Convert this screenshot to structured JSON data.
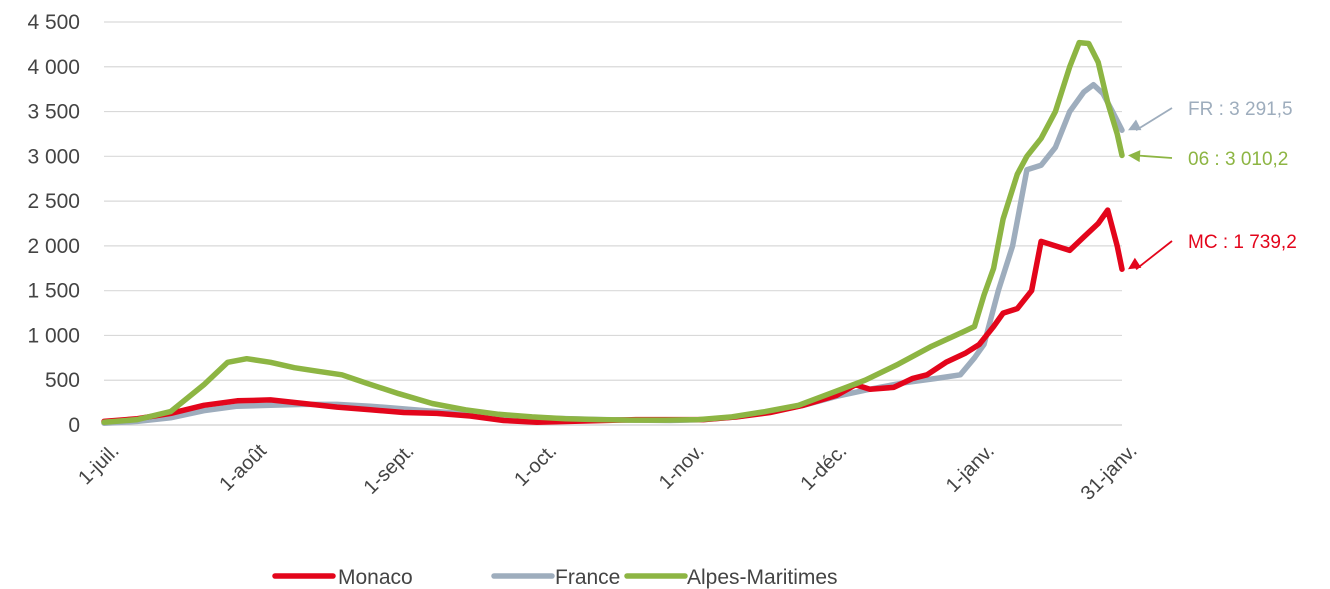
{
  "chart_data": {
    "type": "line",
    "title": "",
    "xlabel": "",
    "ylabel": "",
    "ylim": [
      0,
      4500
    ],
    "yticks": [
      0,
      500,
      1000,
      1500,
      2000,
      2500,
      3000,
      3500,
      4000,
      4500
    ],
    "ytick_labels": [
      "0",
      "500",
      "1 000",
      "1 500",
      "2 000",
      "2 500",
      "3 000",
      "3 500",
      "4 000",
      "4 500"
    ],
    "x_start": "2020-07-01",
    "x_end": "2021-01-31",
    "xticks": [
      {
        "date": "2020-07-01",
        "label": "1-juil."
      },
      {
        "date": "2020-08-01",
        "label": "1-août"
      },
      {
        "date": "2020-09-01",
        "label": "1-sept."
      },
      {
        "date": "2020-10-01",
        "label": "1-oct."
      },
      {
        "date": "2020-11-01",
        "label": "1-nov."
      },
      {
        "date": "2020-12-01",
        "label": "1-déc."
      },
      {
        "date": "2021-01-01",
        "label": "1-janv."
      },
      {
        "date": "2021-01-31",
        "label": "31-janv."
      }
    ],
    "grid": "horizontal",
    "legend_position": "bottom",
    "series": [
      {
        "name": "Monaco",
        "color": "#e3051b",
        "points": [
          [
            "2020-07-01",
            40
          ],
          [
            "2020-07-08",
            70
          ],
          [
            "2020-07-15",
            130
          ],
          [
            "2020-07-22",
            220
          ],
          [
            "2020-07-29",
            270
          ],
          [
            "2020-08-05",
            280
          ],
          [
            "2020-08-12",
            240
          ],
          [
            "2020-08-19",
            200
          ],
          [
            "2020-08-26",
            170
          ],
          [
            "2020-09-02",
            140
          ],
          [
            "2020-09-09",
            130
          ],
          [
            "2020-09-16",
            100
          ],
          [
            "2020-09-23",
            50
          ],
          [
            "2020-09-30",
            30
          ],
          [
            "2020-10-07",
            40
          ],
          [
            "2020-10-14",
            50
          ],
          [
            "2020-10-21",
            60
          ],
          [
            "2020-10-28",
            60
          ],
          [
            "2020-11-04",
            60
          ],
          [
            "2020-11-11",
            90
          ],
          [
            "2020-11-18",
            140
          ],
          [
            "2020-11-25",
            220
          ],
          [
            "2020-12-02",
            330
          ],
          [
            "2020-12-06",
            450
          ],
          [
            "2020-12-09",
            400
          ],
          [
            "2020-12-14",
            420
          ],
          [
            "2020-12-18",
            520
          ],
          [
            "2020-12-21",
            560
          ],
          [
            "2020-12-25",
            700
          ],
          [
            "2020-12-29",
            800
          ],
          [
            "2021-01-01",
            900
          ],
          [
            "2021-01-04",
            1100
          ],
          [
            "2021-01-06",
            1250
          ],
          [
            "2021-01-09",
            1300
          ],
          [
            "2021-01-12",
            1500
          ],
          [
            "2021-01-14",
            2050
          ],
          [
            "2021-01-17",
            2000
          ],
          [
            "2021-01-20",
            1950
          ],
          [
            "2021-01-23",
            2100
          ],
          [
            "2021-01-26",
            2250
          ],
          [
            "2021-01-28",
            2400
          ],
          [
            "2021-01-30",
            2000
          ],
          [
            "2021-01-31",
            1739.2
          ]
        ]
      },
      {
        "name": "France",
        "color": "#9eadbd",
        "points": [
          [
            "2020-07-01",
            20
          ],
          [
            "2020-07-08",
            40
          ],
          [
            "2020-07-15",
            80
          ],
          [
            "2020-07-22",
            160
          ],
          [
            "2020-07-29",
            210
          ],
          [
            "2020-08-05",
            220
          ],
          [
            "2020-08-12",
            230
          ],
          [
            "2020-08-19",
            230
          ],
          [
            "2020-08-26",
            210
          ],
          [
            "2020-09-02",
            180
          ],
          [
            "2020-09-09",
            150
          ],
          [
            "2020-09-16",
            120
          ],
          [
            "2020-09-23",
            100
          ],
          [
            "2020-09-30",
            80
          ],
          [
            "2020-10-07",
            70
          ],
          [
            "2020-10-14",
            60
          ],
          [
            "2020-10-21",
            55
          ],
          [
            "2020-10-28",
            50
          ],
          [
            "2020-11-04",
            60
          ],
          [
            "2020-11-11",
            90
          ],
          [
            "2020-11-18",
            150
          ],
          [
            "2020-11-25",
            220
          ],
          [
            "2020-12-02",
            320
          ],
          [
            "2020-12-09",
            400
          ],
          [
            "2020-12-16",
            470
          ],
          [
            "2020-12-23",
            520
          ],
          [
            "2020-12-28",
            560
          ],
          [
            "2020-12-31",
            750
          ],
          [
            "2021-01-02",
            900
          ],
          [
            "2021-01-05",
            1500
          ],
          [
            "2021-01-08",
            2000
          ],
          [
            "2021-01-11",
            2850
          ],
          [
            "2021-01-14",
            2900
          ],
          [
            "2021-01-17",
            3100
          ],
          [
            "2021-01-20",
            3500
          ],
          [
            "2021-01-23",
            3720
          ],
          [
            "2021-01-25",
            3800
          ],
          [
            "2021-01-27",
            3700
          ],
          [
            "2021-01-29",
            3500
          ],
          [
            "2021-01-31",
            3291.5
          ]
        ]
      },
      {
        "name": "Alpes-Maritimes",
        "color": "#8db543",
        "points": [
          [
            "2020-07-01",
            30
          ],
          [
            "2020-07-08",
            60
          ],
          [
            "2020-07-15",
            150
          ],
          [
            "2020-07-22",
            450
          ],
          [
            "2020-07-27",
            700
          ],
          [
            "2020-07-31",
            740
          ],
          [
            "2020-08-05",
            700
          ],
          [
            "2020-08-10",
            640
          ],
          [
            "2020-08-15",
            600
          ],
          [
            "2020-08-20",
            560
          ],
          [
            "2020-08-25",
            470
          ],
          [
            "2020-09-01",
            350
          ],
          [
            "2020-09-08",
            240
          ],
          [
            "2020-09-15",
            170
          ],
          [
            "2020-09-22",
            120
          ],
          [
            "2020-09-29",
            90
          ],
          [
            "2020-10-06",
            70
          ],
          [
            "2020-10-13",
            60
          ],
          [
            "2020-10-20",
            55
          ],
          [
            "2020-10-27",
            55
          ],
          [
            "2020-11-03",
            60
          ],
          [
            "2020-11-10",
            90
          ],
          [
            "2020-11-17",
            150
          ],
          [
            "2020-11-24",
            220
          ],
          [
            "2020-12-01",
            360
          ],
          [
            "2020-12-08",
            500
          ],
          [
            "2020-12-15",
            680
          ],
          [
            "2020-12-22",
            880
          ],
          [
            "2020-12-27",
            1000
          ],
          [
            "2020-12-29",
            1050
          ],
          [
            "2020-12-31",
            1100
          ],
          [
            "2021-01-02",
            1450
          ],
          [
            "2021-01-04",
            1750
          ],
          [
            "2021-01-06",
            2300
          ],
          [
            "2021-01-09",
            2800
          ],
          [
            "2021-01-11",
            3000
          ],
          [
            "2021-01-14",
            3200
          ],
          [
            "2021-01-17",
            3500
          ],
          [
            "2021-01-20",
            4000
          ],
          [
            "2021-01-22",
            4270
          ],
          [
            "2021-01-24",
            4260
          ],
          [
            "2021-01-26",
            4050
          ],
          [
            "2021-01-28",
            3600
          ],
          [
            "2021-01-30",
            3250
          ],
          [
            "2021-01-31",
            3010.2
          ]
        ]
      }
    ],
    "annotations": [
      {
        "series": "France",
        "text": "FR : 3 291,5",
        "color": "#9eadbd",
        "value": 3291.5
      },
      {
        "series": "Alpes-Maritimes",
        "text": "06 : 3 010,2",
        "color": "#8db543",
        "value": 3010.2
      },
      {
        "series": "Monaco",
        "text": "MC : 1 739,2",
        "color": "#e3051b",
        "value": 1739.2
      }
    ]
  }
}
